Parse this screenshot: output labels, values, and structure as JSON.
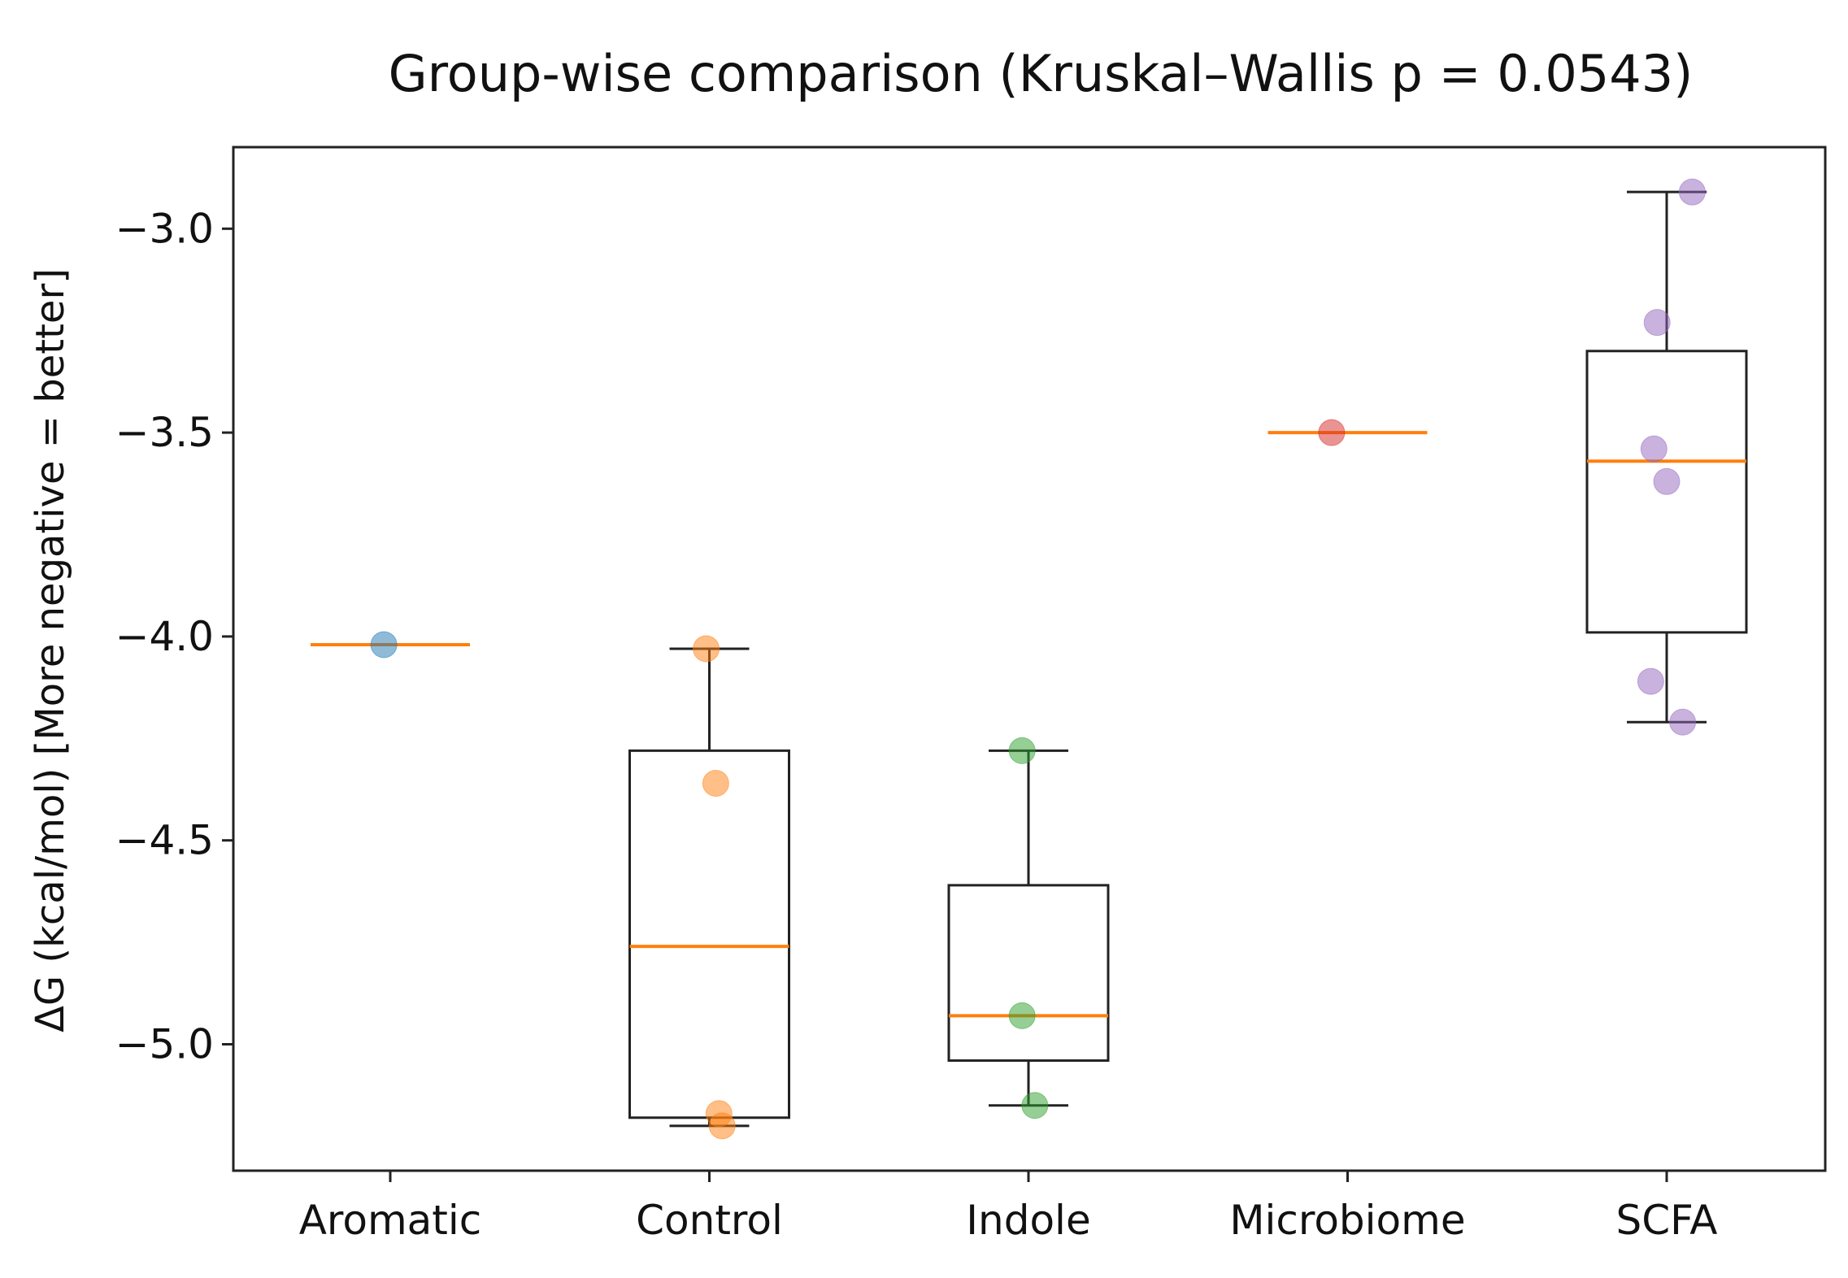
{
  "chart_data": {
    "type": "box",
    "title": "Group-wise comparison (Kruskal–Wallis p = 0.0543)",
    "xlabel": "",
    "ylabel": "ΔG (kcal/mol)    [More negative = better]",
    "categories": [
      "Aromatic",
      "Control",
      "Indole",
      "Microbiome",
      "SCFA"
    ],
    "ylim": [
      -5.31,
      -2.8
    ],
    "yticks": [
      -3.0,
      -3.5,
      -4.0,
      -4.5,
      -5.0
    ],
    "ytick_labels": [
      "−3.0",
      "−3.5",
      "−4.0",
      "−4.5",
      "−5.0"
    ],
    "grid": false,
    "legend": "none",
    "boxes": [
      {
        "category": "Aromatic",
        "whisker_low": -4.02,
        "q1": -4.02,
        "median": -4.02,
        "q3": -4.02,
        "whisker_high": -4.02,
        "color": "#1f77b4",
        "points": [
          {
            "offset": -0.02,
            "y": -4.02
          }
        ]
      },
      {
        "category": "Control",
        "whisker_low": -5.2,
        "q1": -5.18,
        "median": -4.76,
        "q3": -4.28,
        "whisker_high": -4.03,
        "color": "#ff7f0e",
        "points": [
          {
            "offset": -0.01,
            "y": -4.03
          },
          {
            "offset": 0.02,
            "y": -4.36
          },
          {
            "offset": 0.03,
            "y": -5.17
          },
          {
            "offset": 0.04,
            "y": -5.2
          }
        ]
      },
      {
        "category": "Indole",
        "whisker_low": -5.15,
        "q1": -5.04,
        "median": -4.93,
        "q3": -4.61,
        "whisker_high": -4.28,
        "color": "#2ca02c",
        "points": [
          {
            "offset": -0.02,
            "y": -4.28
          },
          {
            "offset": -0.02,
            "y": -4.93
          },
          {
            "offset": 0.02,
            "y": -5.15
          }
        ]
      },
      {
        "category": "Microbiome",
        "whisker_low": -3.5,
        "q1": -3.5,
        "median": -3.5,
        "q3": -3.5,
        "whisker_high": -3.5,
        "color": "#d62728",
        "points": [
          {
            "offset": -0.05,
            "y": -3.5
          }
        ]
      },
      {
        "category": "SCFA",
        "whisker_low": -4.21,
        "q1": -3.99,
        "median": -3.57,
        "q3": -3.3,
        "whisker_high": -2.91,
        "color": "#9467bd",
        "points": [
          {
            "offset": 0.08,
            "y": -2.91
          },
          {
            "offset": -0.03,
            "y": -3.23
          },
          {
            "offset": -0.04,
            "y": -3.54
          },
          {
            "offset": 0.0,
            "y": -3.62
          },
          {
            "offset": -0.05,
            "y": -4.11
          },
          {
            "offset": 0.05,
            "y": -4.21
          }
        ]
      }
    ]
  }
}
